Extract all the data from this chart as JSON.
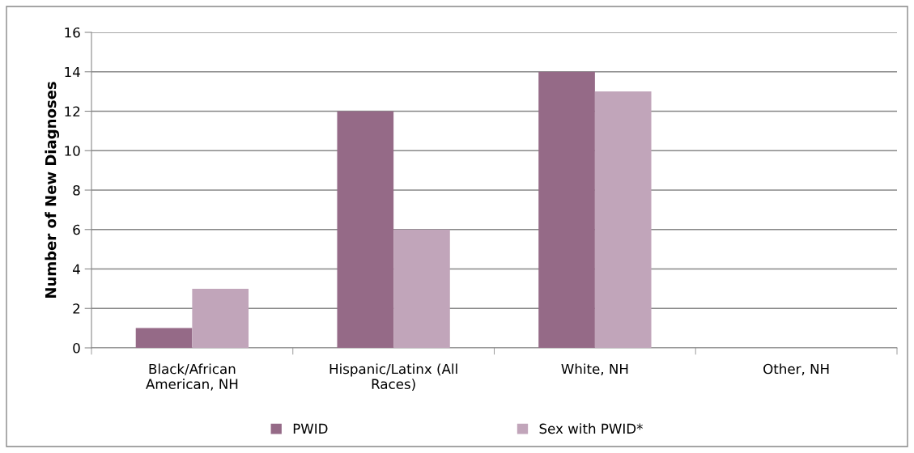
{
  "chart_data": {
    "type": "bar",
    "ylabel": "Number of New Diagnoses",
    "categories": [
      "Black/African\nAmerican, NH",
      "Hispanic/Latinx (All\nRaces)",
      "White, NH",
      "Other, NH"
    ],
    "series": [
      {
        "name": "PWID",
        "color": "#956a87",
        "values": [
          1,
          12,
          14,
          0
        ]
      },
      {
        "name": "Sex with PWID*",
        "color": "#c1a5ba",
        "values": [
          3,
          6,
          13,
          0
        ]
      }
    ],
    "ylim": [
      0,
      16
    ],
    "yticks": [
      0,
      2,
      4,
      6,
      8,
      10,
      12,
      14,
      16
    ],
    "grid": "y",
    "legend": "bottom"
  }
}
